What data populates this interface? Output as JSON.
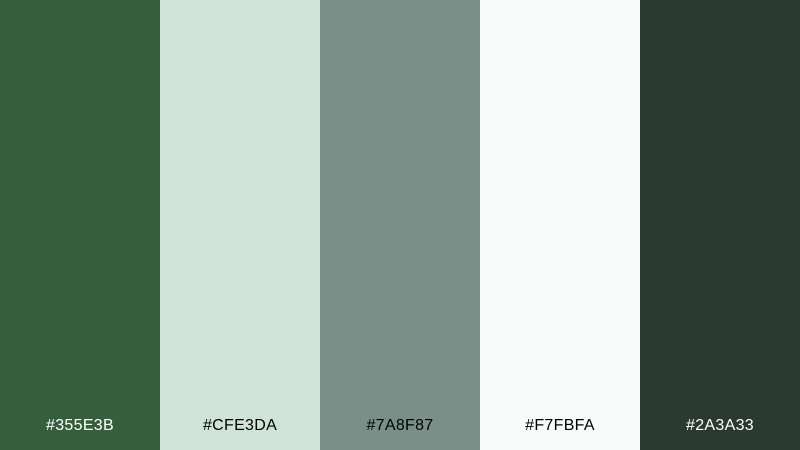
{
  "palette": {
    "swatches": [
      {
        "hex": "#355E3B",
        "color": "#355E3B",
        "label_color": "#FFFFFF"
      },
      {
        "hex": "#CFE3DA",
        "color": "#CFE3DA",
        "label_color": "#000000"
      },
      {
        "hex": "#7A8F87",
        "color": "#7A8F87",
        "label_color": "#000000"
      },
      {
        "hex": "#F7FBFA",
        "color": "#F7FBFA",
        "label_color": "#000000"
      },
      {
        "hex": "#2A3A33",
        "color": "#2A3A33",
        "label_color": "#FFFFFF"
      }
    ]
  }
}
